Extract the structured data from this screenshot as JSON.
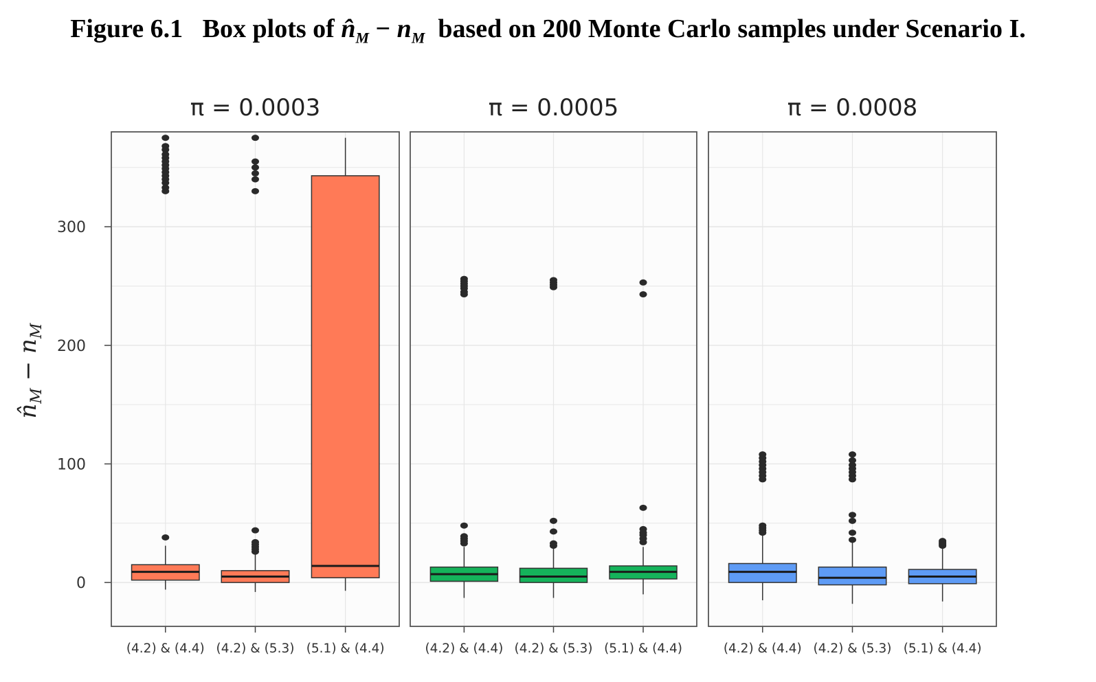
{
  "figure": {
    "label": "Figure 6.1",
    "text_before": "Box plots of",
    "sym_a": "n̂",
    "sym_a_sub": "M",
    "minus": "−",
    "sym_b": "n",
    "sym_b_sub": "M",
    "text_after": "based on 200 Monte Carlo samples under Scenario I."
  },
  "colors": {
    "facet1": "#FF7A57",
    "facet2": "#15B35B",
    "facet3": "#5E9BF5",
    "outlier": "#2a2a2a",
    "grid": "#e6e6e6",
    "panel_bg": "#fcfcfc"
  },
  "chart_data": {
    "type": "box",
    "ylabel": "n̂_M − n_M",
    "ylim": [
      -37,
      380
    ],
    "yticks": [
      0,
      100,
      200,
      300
    ],
    "grid": true,
    "categories": [
      "(4.2) & (4.4)",
      "(4.2) & (5.3)",
      "(5.1) & (4.4)"
    ],
    "facets": [
      {
        "title": "π = 0.0003",
        "boxes": [
          {
            "whisker_low": -6,
            "q1": 2,
            "median": 9,
            "q3": 15,
            "whisker_high": 31,
            "outliers": [
              38,
              330,
              333,
              337,
              340,
              343,
              346,
              349,
              352,
              355,
              358,
              361,
              365,
              368,
              375
            ]
          },
          {
            "whisker_low": -8,
            "q1": 0,
            "median": 5,
            "q3": 10,
            "whisker_high": 24,
            "outliers": [
              26,
              28,
              30,
              32,
              34,
              44,
              330,
              340,
              345,
              350,
              355,
              375
            ]
          },
          {
            "whisker_low": -7,
            "q1": 4,
            "median": 14,
            "q3": 343,
            "whisker_high": 375,
            "outliers": []
          }
        ]
      },
      {
        "title": "π = 0.0005",
        "boxes": [
          {
            "whisker_low": -13,
            "q1": 1,
            "median": 7,
            "q3": 13,
            "whisker_high": 30,
            "outliers": [
              33,
              35,
              37,
              39,
              48,
              243,
              245,
              248,
              250,
              252,
              254,
              256
            ]
          },
          {
            "whisker_low": -13,
            "q1": 0,
            "median": 5,
            "q3": 12,
            "whisker_high": 29,
            "outliers": [
              31,
              33,
              43,
              52,
              249,
              251,
              253,
              255
            ]
          },
          {
            "whisker_low": -10,
            "q1": 3,
            "median": 9,
            "q3": 14,
            "whisker_high": 30,
            "outliers": [
              34,
              37,
              40,
              42,
              45,
              63,
              243,
              253
            ]
          }
        ]
      },
      {
        "title": "π = 0.0008",
        "boxes": [
          {
            "whisker_low": -15,
            "q1": 0,
            "median": 9,
            "q3": 16,
            "whisker_high": 40,
            "outliers": [
              42,
              44,
              46,
              48,
              87,
              90,
              93,
              96,
              99,
              102,
              105,
              108
            ]
          },
          {
            "whisker_low": -18,
            "q1": -2,
            "median": 4,
            "q3": 13,
            "whisker_high": 34,
            "outliers": [
              36,
              42,
              52,
              57,
              87,
              90,
              93,
              96,
              99,
              103,
              108
            ]
          },
          {
            "whisker_low": -16,
            "q1": -1,
            "median": 5,
            "q3": 11,
            "whisker_high": 31,
            "outliers": [
              31,
              32,
              33,
              34,
              35
            ]
          }
        ]
      }
    ]
  }
}
